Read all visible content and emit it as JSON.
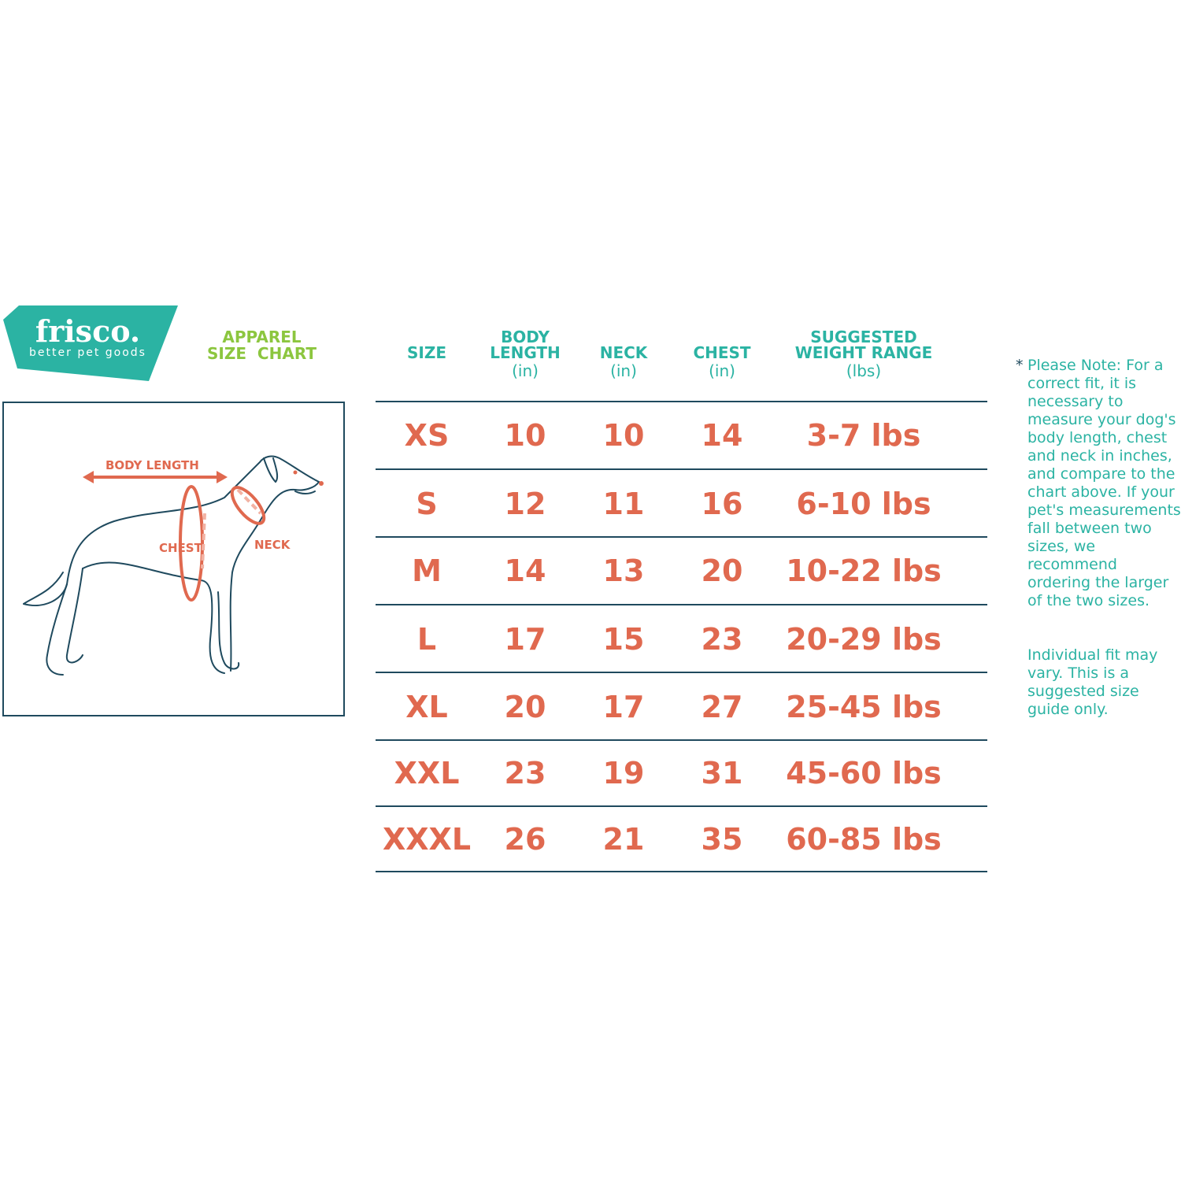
{
  "brand": {
    "name": "frisco.",
    "tagline": "better pet goods",
    "color": "#2bb3a3"
  },
  "title": {
    "line1": "APPAREL",
    "line2": "SIZE  CHART",
    "color": "#8cc63f"
  },
  "figure": {
    "labels": {
      "body_length": "BODY LENGTH",
      "chest": "CHEST",
      "neck": "NECK"
    }
  },
  "table": {
    "headers": [
      {
        "label": "SIZE",
        "unit": ""
      },
      {
        "label": "BODY\nLENGTH",
        "unit": "(in)"
      },
      {
        "label": "NECK",
        "unit": "(in)"
      },
      {
        "label": "CHEST",
        "unit": "(in)"
      },
      {
        "label": "SUGGESTED\nWEIGHT RANGE",
        "unit": "(lbs)"
      }
    ],
    "rows": [
      [
        "XS",
        "10",
        "10",
        "14",
        "3-7 lbs"
      ],
      [
        "S",
        "12",
        "11",
        "16",
        "6-10 lbs"
      ],
      [
        "M",
        "14",
        "13",
        "20",
        "10-22 lbs"
      ],
      [
        "L",
        "17",
        "15",
        "23",
        "20-29 lbs"
      ],
      [
        "XL",
        "20",
        "17",
        "27",
        "25-45 lbs"
      ],
      [
        "XXL",
        "23",
        "19",
        "31",
        "45-60 lbs"
      ],
      [
        "XXXL",
        "26",
        "21",
        "35",
        "60-85 lbs"
      ]
    ],
    "value_color": "#e0694f",
    "header_color": "#2bb3a3"
  },
  "note": {
    "star": "*",
    "paragraph1": "Please Note: For a correct fit, it is necessary to measure your dog's body length, chest and neck in inches, and compare to the chart above. If your pet's measurements fall between two sizes, we recommend ordering the larger of the two sizes.",
    "paragraph2": "Individual fit may vary. This is a suggested size guide only."
  }
}
